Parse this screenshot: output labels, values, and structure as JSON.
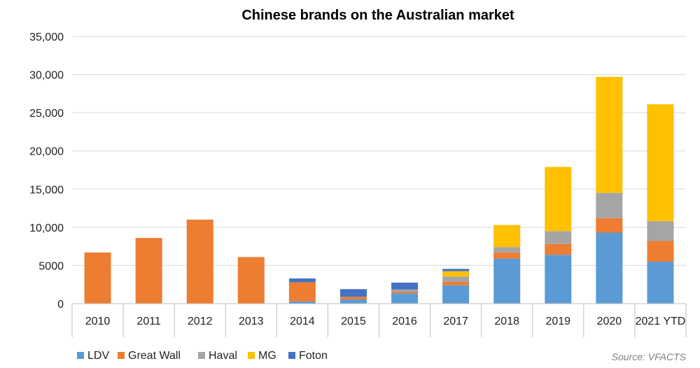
{
  "chart_data": {
    "type": "bar",
    "stacked": true,
    "title": "Chinese brands on the Australian market",
    "xlabel": "",
    "ylabel": "",
    "ylim": [
      0,
      35000
    ],
    "yticks": [
      0,
      5000,
      10000,
      15000,
      20000,
      25000,
      30000,
      35000
    ],
    "ytick_labels": [
      "0",
      "5000",
      "10,000",
      "15,000",
      "20,000",
      "25,000",
      "30,000",
      "35,000"
    ],
    "categories": [
      "2010",
      "2011",
      "2012",
      "2013",
      "2014",
      "2015",
      "2016",
      "2017",
      "2018",
      "2019",
      "2020",
      "2021 YTD"
    ],
    "series": [
      {
        "name": "LDV",
        "color": "#5b9bd5",
        "values": [
          0,
          0,
          0,
          0,
          300,
          550,
          1350,
          2400,
          5900,
          6400,
          9300,
          5500
        ]
      },
      {
        "name": "Great Wall",
        "color": "#ed7d31",
        "values": [
          6700,
          8600,
          11000,
          6100,
          2500,
          350,
          200,
          450,
          800,
          1400,
          1900,
          2700
        ]
      },
      {
        "name": "Haval",
        "color": "#a5a5a5",
        "values": [
          0,
          0,
          0,
          0,
          0,
          0,
          300,
          700,
          700,
          1700,
          3300,
          2600
        ]
      },
      {
        "name": "MG",
        "color": "#ffc000",
        "values": [
          0,
          0,
          0,
          0,
          0,
          0,
          0,
          700,
          2900,
          8400,
          15200,
          15300
        ]
      },
      {
        "name": "Foton",
        "color": "#4472c4",
        "values": [
          0,
          0,
          0,
          0,
          500,
          1000,
          900,
          300,
          0,
          0,
          0,
          0
        ]
      }
    ],
    "grid": true,
    "legend_position": "bottom-left",
    "source_note": "Source: VFACTS"
  }
}
